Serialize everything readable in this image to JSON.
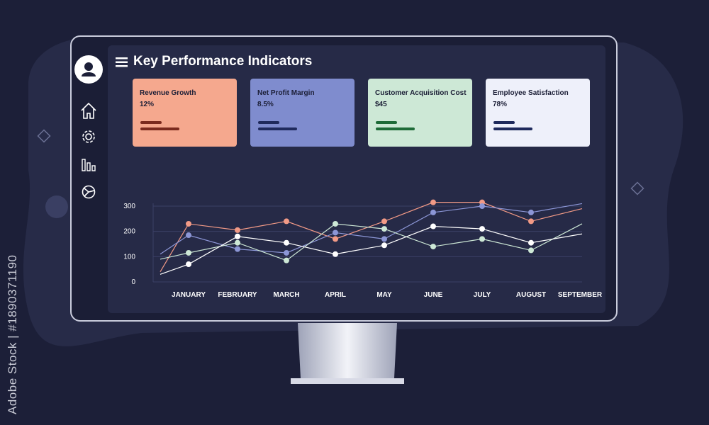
{
  "window": {
    "title": "Key Performance Indicators"
  },
  "watermark": {
    "text": "Adobe Stock | #1890371190"
  },
  "sidebar": {
    "items": [
      {
        "icon": "avatar-user-icon"
      },
      {
        "icon": "home-icon"
      },
      {
        "icon": "gear-icon"
      },
      {
        "icon": "bar-chart-icon"
      },
      {
        "icon": "pie-chart-icon"
      }
    ]
  },
  "kpis": [
    {
      "title": "Revenue Growth",
      "value": "12%",
      "bg": "#f5a88e",
      "bar": "#7a2a1e"
    },
    {
      "title": "Net Profit Margin",
      "value": "8.5%",
      "bg": "#7f8cce",
      "bar": "#1f2a5c"
    },
    {
      "title": "Customer Acquisition Cost",
      "value": "$45",
      "bg": "#cde8d6",
      "bar": "#1e6b38"
    },
    {
      "title": "Employee Satisfaction",
      "value": "78%",
      "bg": "#eef0fa",
      "bar": "#1f2a5c"
    }
  ],
  "chart_data": {
    "type": "line",
    "categories": [
      "JANUARY",
      "FEBRUARY",
      "MARCH",
      "APRIL",
      "MAY",
      "JUNE",
      "JULY",
      "AUGUST",
      "SEPTEMBER"
    ],
    "y_ticks": [
      "0",
      "100",
      "200",
      "300"
    ],
    "ylim": [
      0,
      300
    ],
    "series": [
      {
        "color": "#f29a86",
        "values": [
          230,
          205,
          240,
          170,
          240,
          315,
          315,
          240,
          290
        ],
        "start": 40
      },
      {
        "color": "#8c96d6",
        "values": [
          185,
          130,
          115,
          195,
          170,
          275,
          300,
          275,
          310
        ],
        "start": 110
      },
      {
        "color": "#cde8d6",
        "values": [
          115,
          155,
          85,
          230,
          210,
          140,
          170,
          125,
          230
        ],
        "start": 90
      },
      {
        "color": "#ffffff",
        "values": [
          70,
          180,
          155,
          110,
          145,
          220,
          210,
          155,
          190
        ],
        "start": 30
      }
    ],
    "grid": true,
    "legend": "none"
  }
}
